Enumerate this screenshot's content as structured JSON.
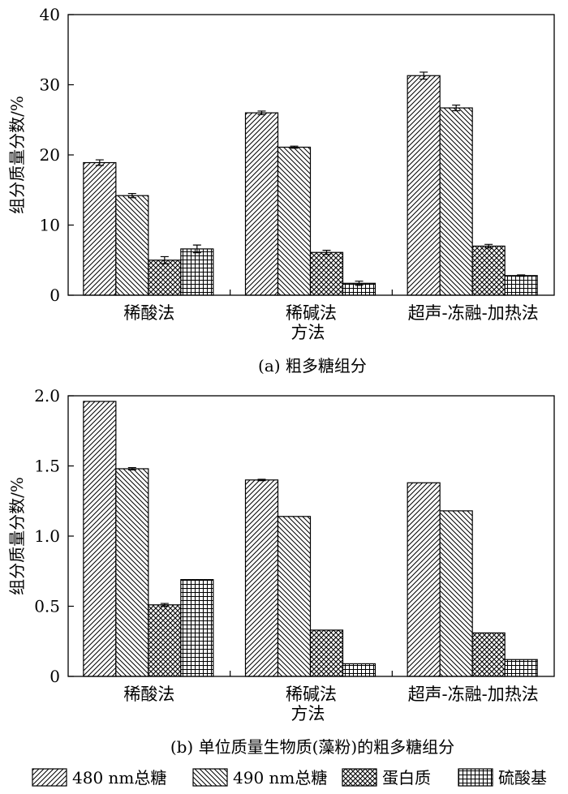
{
  "chart_data": [
    {
      "type": "bar",
      "panel_caption": "(a)  粗多糖组分",
      "xlabel": "方法",
      "ylabel": "组分质量分数/%",
      "categories": [
        "稀酸法",
        "稀碱法",
        "超声-冻融-加热法"
      ],
      "ylim": [
        0,
        40
      ],
      "yticks": [
        "0",
        "10",
        "20",
        "30",
        "40"
      ],
      "series": [
        {
          "name": "480 nm总糖",
          "values": [
            18.9,
            26.0,
            31.3
          ],
          "errors": [
            0.4,
            0.25,
            0.5
          ]
        },
        {
          "name": "490 nm总糖",
          "values": [
            14.2,
            21.1,
            26.7
          ],
          "errors": [
            0.3,
            0.15,
            0.4
          ]
        },
        {
          "name": "蛋白质",
          "values": [
            5.0,
            6.1,
            7.0
          ],
          "errors": [
            0.5,
            0.3,
            0.25
          ]
        },
        {
          "name": "硫酸基",
          "values": [
            6.6,
            1.7,
            2.8
          ],
          "errors": [
            0.55,
            0.3,
            0.1
          ]
        }
      ]
    },
    {
      "type": "bar",
      "panel_caption": "(b)  单位质量生物质(藻粉)的粗多糖组分",
      "xlabel": "方法",
      "ylabel": "组分质量分数/%",
      "categories": [
        "稀酸法",
        "稀碱法",
        "超声-冻融-加热法"
      ],
      "ylim": [
        0,
        2.0
      ],
      "yticks": [
        "0",
        "0.5",
        "1.0",
        "1.5",
        "2.0"
      ],
      "series": [
        {
          "name": "480 nm总糖",
          "values": [
            1.96,
            1.4,
            1.38
          ],
          "errors": [
            0,
            0.005,
            0
          ]
        },
        {
          "name": "490 nm总糖",
          "values": [
            1.48,
            1.14,
            1.18
          ],
          "errors": [
            0.008,
            0,
            0
          ]
        },
        {
          "name": "蛋白质",
          "values": [
            0.51,
            0.33,
            0.31
          ],
          "errors": [
            0.01,
            0,
            0
          ]
        },
        {
          "name": "硫酸基",
          "values": [
            0.69,
            0.09,
            0.12
          ],
          "errors": [
            0,
            0,
            0
          ]
        }
      ]
    }
  ],
  "legend": {
    "placement": "bottom",
    "items": [
      "480 nm总糖",
      "490 nm总糖",
      "蛋白质",
      "硫酸基"
    ],
    "patterns": [
      "diag-right",
      "diag-left",
      "crosshatch",
      "grid"
    ]
  }
}
